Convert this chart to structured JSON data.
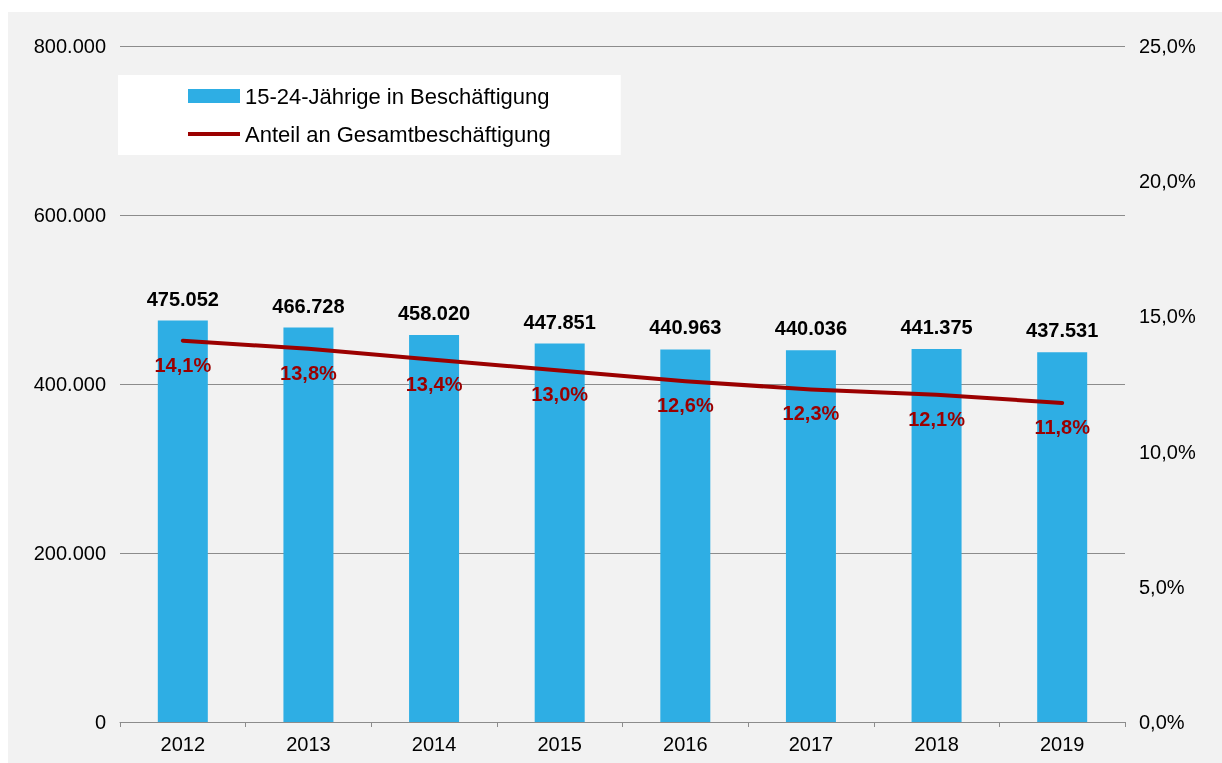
{
  "chart_data": {
    "type": "bar",
    "categories": [
      "2012",
      "2013",
      "2014",
      "2015",
      "2016",
      "2017",
      "2018",
      "2019"
    ],
    "series": [
      {
        "name": "15-24-Jährige in Beschäftigung",
        "color": "#2eaee4",
        "values": [
          475052,
          466728,
          458020,
          447851,
          440963,
          440036,
          441375,
          437531
        ],
        "value_labels": [
          "475.052",
          "466.728",
          "458.020",
          "447.851",
          "440.963",
          "440.036",
          "441.375",
          "437.531"
        ]
      },
      {
        "name": "Anteil an Gesamtbeschäftigung",
        "type": "line",
        "axis": "y2",
        "color": "#9b0000",
        "values": [
          14.1,
          13.8,
          13.4,
          13.0,
          12.6,
          12.3,
          12.1,
          11.8
        ],
        "value_labels": [
          "14,1%",
          "13,8%",
          "13,4%",
          "13,0%",
          "12,6%",
          "12,3%",
          "12,1%",
          "11,8%"
        ]
      }
    ],
    "ylim": [
      0,
      800000
    ],
    "yticks": [
      {
        "value": 0,
        "label": "0"
      },
      {
        "value": 200000,
        "label": "200.000"
      },
      {
        "value": 400000,
        "label": "400.000"
      },
      {
        "value": 600000,
        "label": "600.000"
      },
      {
        "value": 800000,
        "label": "800.000"
      }
    ],
    "y2lim": [
      0,
      25
    ],
    "y2ticks": [
      {
        "value": 0,
        "label": "0,0%"
      },
      {
        "value": 5,
        "label": "5,0%"
      },
      {
        "value": 10,
        "label": "10,0%"
      },
      {
        "value": 15,
        "label": "15,0%"
      },
      {
        "value": 20,
        "label": "20,0%"
      },
      {
        "value": 25,
        "label": "25,0%"
      }
    ],
    "grid": "y",
    "legend": "top left",
    "marker": "none",
    "line_style": "solid"
  }
}
